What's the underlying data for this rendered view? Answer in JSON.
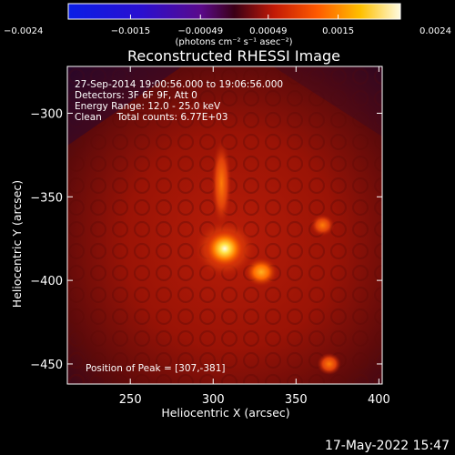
{
  "chart_data": {
    "type": "heatmap",
    "title": "Reconstructed RHESSI Image",
    "xlabel": "Heliocentric X (arcsec)",
    "ylabel": "Heliocentric Y (arcsec)",
    "xlim": [
      212,
      402
    ],
    "ylim": [
      -462,
      -272
    ],
    "x_ticks": [
      250,
      300,
      350,
      400
    ],
    "y_ticks": [
      -300,
      -350,
      -400,
      -450
    ],
    "x_tick_labels": [
      "250",
      "300",
      "350",
      "400"
    ],
    "y_tick_labels": [
      "−300",
      "−350",
      "−400",
      "−450"
    ],
    "colorbar": {
      "range": [
        -0.0024,
        0.0024
      ],
      "ticks": [
        -0.0024,
        -0.0015,
        -0.00049,
        0.00049,
        0.0015,
        0.0024
      ],
      "tick_labels": [
        "−0.0024",
        "−0.0015",
        "−0.00049",
        "0.00049",
        "0.0015",
        "0.0024"
      ],
      "label": "(photons cm⁻² s⁻¹ asec⁻²)",
      "colormap": "sunset"
    },
    "annotations": {
      "time_range": "27-Sep-2014 19:00:56.000 to 19:06:56.000",
      "detectors": "Detectors: 3F 6F 9F, Att 0",
      "energy_range": "Energy Range: 12.0 - 25.0 keV",
      "clean_total": "Clean     Total counts: 6.77E+03",
      "peak_position": "Position of Peak = [307,-381]"
    },
    "sources": [
      {
        "x": 307,
        "y": -381,
        "relative_intensity": 1.0
      },
      {
        "x": 329,
        "y": -395,
        "relative_intensity": 0.7
      },
      {
        "x": 305,
        "y": -342,
        "relative_intensity": 0.45
      },
      {
        "x": 366,
        "y": -367,
        "relative_intensity": 0.4
      },
      {
        "x": 370,
        "y": -450,
        "relative_intensity": 0.3
      }
    ]
  },
  "footer": {
    "date": "17-May-2022 15:47"
  }
}
